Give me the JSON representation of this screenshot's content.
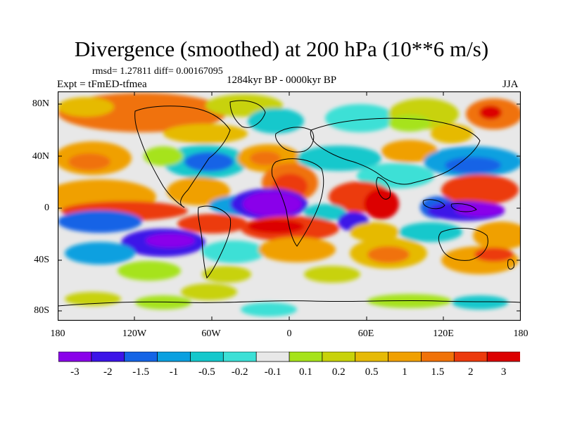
{
  "title": "Divergence (smoothed) at 200 hPa (10**6 m/s)",
  "stats": "rmsd= 1.27811 diff= 0.00167095",
  "period": "1284kyr BP - 0000kyr BP",
  "experiment": "Expt = tFmED-tfmea",
  "season": "JJA",
  "lat_ticks": [
    "80N",
    "40N",
    "0",
    "40S",
    "80S"
  ],
  "lon_ticks": [
    "180",
    "120W",
    "60W",
    "0",
    "60E",
    "120E",
    "180"
  ],
  "colorbar": {
    "colors": [
      "#8a00ea",
      "#3c14e8",
      "#1464e6",
      "#0aa0e0",
      "#14c8cc",
      "#3ce0d6",
      "#e8e8e8",
      "#a6e31a",
      "#c8d20a",
      "#e6ba06",
      "#f0a000",
      "#f07208",
      "#ec3a0c",
      "#dc0000"
    ],
    "labels": [
      "-3",
      "-2",
      "-1.5",
      "-1",
      "-0.5",
      "-0.2",
      "-0.1",
      "0.1",
      "0.2",
      "0.5",
      "1",
      "1.5",
      "2",
      "3"
    ]
  }
}
